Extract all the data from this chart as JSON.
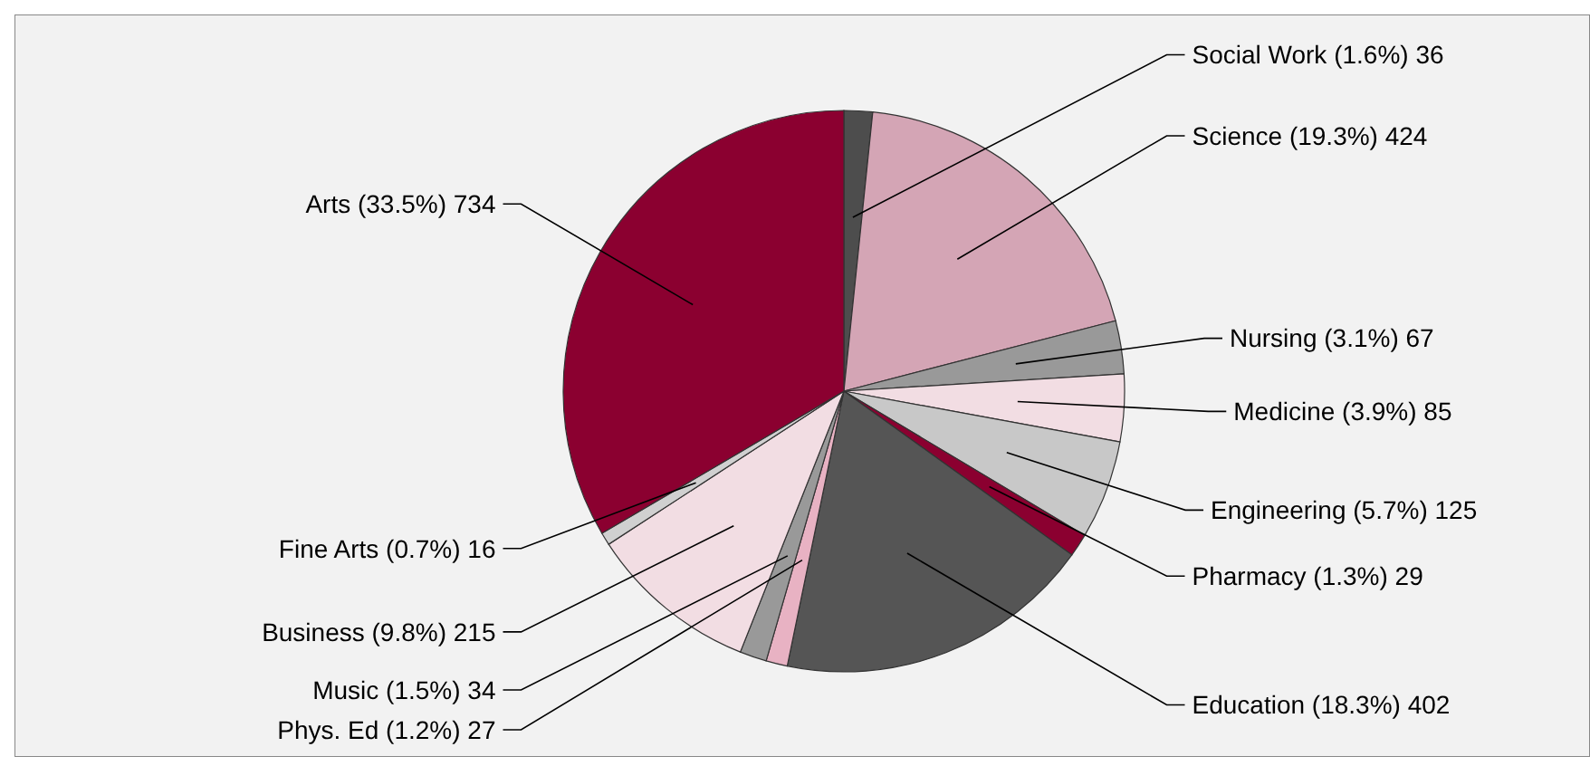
{
  "chart_data": {
    "type": "pie",
    "categories": [
      "Social Work",
      "Science",
      "Nursing",
      "Medicine",
      "Engineering",
      "Pharmacy",
      "Education",
      "Phys. Ed",
      "Music",
      "Business",
      "Fine Arts",
      "Arts"
    ],
    "values": [
      36,
      424,
      67,
      85,
      125,
      29,
      402,
      27,
      34,
      215,
      16,
      734
    ],
    "value_labels": [
      "(1.6%) 36",
      "(19.3%) 424",
      "(3.1%) 67",
      "(3.9%) 85",
      "(5.7%) 125",
      "(1.3%) 29",
      "(18.3%) 402",
      "(1.2%) 27",
      "(1.5%) 34",
      "(9.8%) 215",
      "(0.7%) 16",
      "(33.5%) 734"
    ],
    "colors": [
      "#4d4d4d",
      "#d4a5b5",
      "#999999",
      "#f2dde3",
      "#c8c8c8",
      "#8b0030",
      "#555555",
      "#e8b2c3",
      "#999999",
      "#f2dde3",
      "#d0d0d0",
      "#8b0030"
    ]
  }
}
